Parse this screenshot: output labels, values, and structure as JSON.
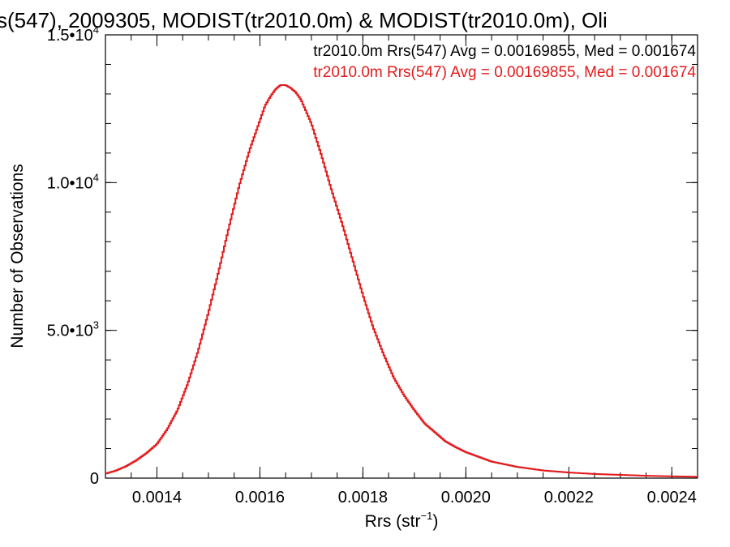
{
  "chart_data": {
    "type": "line",
    "title": "s(547), 2009305, MODIST(tr2010.0m) & MODIST(tr2010.0m), Oli",
    "xlabel_main": "Rrs (str",
    "xlabel_sup": "−1",
    "xlabel_end": ")",
    "ylabel": "Number of Observations",
    "xlim": [
      0.0013,
      0.00245
    ],
    "ylim": [
      0,
      15000
    ],
    "xticks": [
      {
        "value": 0.0014,
        "label": "0.0014"
      },
      {
        "value": 0.0016,
        "label": "0.0016"
      },
      {
        "value": 0.0018,
        "label": "0.0018"
      },
      {
        "value": 0.002,
        "label": "0.0020"
      },
      {
        "value": 0.0022,
        "label": "0.0022"
      },
      {
        "value": 0.0024,
        "label": "0.0024"
      }
    ],
    "yticks": [
      {
        "value": 0,
        "mant": "0",
        "exp": ""
      },
      {
        "value": 5000,
        "mant": "5.0•10",
        "exp": "3"
      },
      {
        "value": 10000,
        "mant": "1.0•10",
        "exp": "4"
      },
      {
        "value": 15000,
        "mant": "1.5•10",
        "exp": "4"
      }
    ],
    "legend": [
      {
        "text": "tr2010.0m Rrs(547) Avg = 0.00169855, Med = 0.001674",
        "color": "#000000"
      },
      {
        "text": "tr2010.0m Rrs(547) Avg = 0.00169855, Med = 0.001674",
        "color": "#e31a1c"
      }
    ],
    "series": [
      {
        "color": "#e31a1c",
        "x": [
          0.0013,
          0.00132,
          0.00134,
          0.00136,
          0.00138,
          0.0014,
          0.00142,
          0.00144,
          0.00146,
          0.00148,
          0.0015,
          0.00152,
          0.00154,
          0.00156,
          0.00158,
          0.0016,
          0.00161,
          0.00162,
          0.00163,
          0.00164,
          0.00165,
          0.00166,
          0.00167,
          0.00168,
          0.00169,
          0.0017,
          0.00172,
          0.00174,
          0.00176,
          0.00178,
          0.0018,
          0.00182,
          0.00184,
          0.00186,
          0.00188,
          0.0019,
          0.00192,
          0.00194,
          0.00196,
          0.00198,
          0.002,
          0.00205,
          0.0021,
          0.00215,
          0.0022,
          0.00225,
          0.0023,
          0.00235,
          0.0024,
          0.00245
        ],
        "y": [
          150,
          250,
          400,
          600,
          850,
          1150,
          1650,
          2300,
          3200,
          4300,
          5600,
          7000,
          8500,
          9900,
          11100,
          12100,
          12600,
          12900,
          13150,
          13300,
          13300,
          13200,
          13050,
          12800,
          12400,
          12000,
          10900,
          9700,
          8600,
          7400,
          6200,
          5100,
          4200,
          3400,
          2800,
          2300,
          1850,
          1550,
          1250,
          1050,
          880,
          560,
          380,
          260,
          190,
          140,
          110,
          80,
          60,
          45
        ]
      }
    ]
  }
}
